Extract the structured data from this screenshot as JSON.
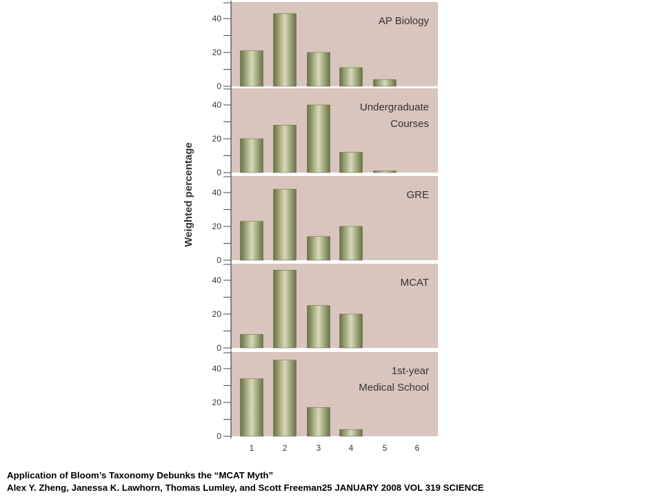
{
  "chart_data": {
    "type": "bar",
    "ylabel": "Weighted percentage",
    "categories": [
      "1",
      "2",
      "3",
      "4",
      "5",
      "6"
    ],
    "ylim": [
      0,
      48
    ],
    "yticks": [
      0,
      20,
      40
    ],
    "grid": false,
    "colors": {
      "panel_bg": "#d8c5bd",
      "bar_dark": "#6a7142",
      "bar_light": "#d6dab8"
    },
    "panels": [
      {
        "name": "AP Biology",
        "label_lines": [
          "AP Biology"
        ],
        "values": [
          21,
          43,
          20,
          11,
          4,
          0
        ]
      },
      {
        "name": "Undergraduate Courses",
        "label_lines": [
          "Undergraduate",
          "Courses"
        ],
        "values": [
          20,
          28,
          40,
          12,
          1,
          0
        ]
      },
      {
        "name": "GRE",
        "label_lines": [
          "GRE"
        ],
        "values": [
          23,
          42,
          14,
          20,
          0,
          0
        ]
      },
      {
        "name": "MCAT",
        "label_lines": [
          "MCAT"
        ],
        "values": [
          8,
          46,
          25,
          20,
          0,
          0
        ]
      },
      {
        "name": "1st-year Medical School",
        "label_lines": [
          "1st-year",
          "Medical School"
        ],
        "values": [
          34,
          45,
          17,
          4,
          0,
          0
        ]
      }
    ]
  },
  "caption": {
    "line1": "Application  of Bloom’s  Taxonomy Debunks the “MCAT Myth”",
    "line2": "Alex Y. Zheng, Janessa K. Lawhorn, Thomas Lumley, and Scott Freeman25 JANUARY 2008 VOL 319 SCIENCE"
  }
}
